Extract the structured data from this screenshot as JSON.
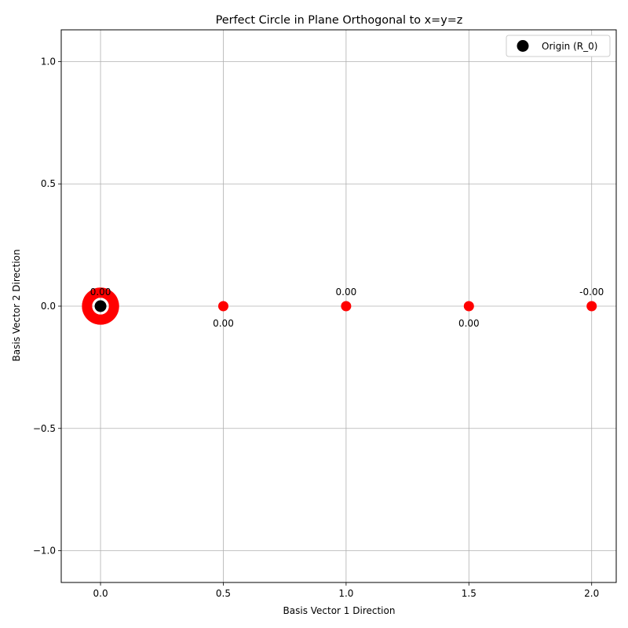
{
  "chart_data": {
    "type": "scatter",
    "title": "Perfect Circle in Plane Orthogonal to x=y=z",
    "xlabel": "Basis Vector 1 Direction",
    "ylabel": "Basis Vector 2 Direction",
    "xlim": [
      -0.16,
      2.1
    ],
    "ylim": [
      -1.13,
      1.13
    ],
    "xticks": [
      0.0,
      0.5,
      1.0,
      1.5,
      2.0
    ],
    "xtick_labels": [
      "0.0",
      "0.5",
      "1.0",
      "1.5",
      "2.0"
    ],
    "yticks": [
      -1.0,
      -0.5,
      0.0,
      0.5,
      1.0
    ],
    "ytick_labels": [
      "−1.0",
      "−0.5",
      "0.0",
      "0.5",
      "1.0"
    ],
    "grid": true,
    "legend_position": "top-right",
    "series": [
      {
        "name": "Origin (R_0)",
        "color": "#000000",
        "points": [
          [
            0,
            0
          ]
        ]
      },
      {
        "color": "#ff0000",
        "cluster": {
          "center": [
            0,
            0
          ],
          "radius": 0.055,
          "marker_count": 60
        },
        "points": [
          [
            0.0,
            0.0
          ],
          [
            0.5,
            0.0
          ],
          [
            1.0,
            0.0
          ],
          [
            1.5,
            0.0
          ],
          [
            2.0,
            0.0
          ]
        ],
        "labels": [
          "0.00",
          "0.00",
          "0.00",
          "0.00",
          "-0.00"
        ],
        "label_side": [
          "above",
          "below",
          "above",
          "below",
          "above"
        ]
      }
    ]
  }
}
